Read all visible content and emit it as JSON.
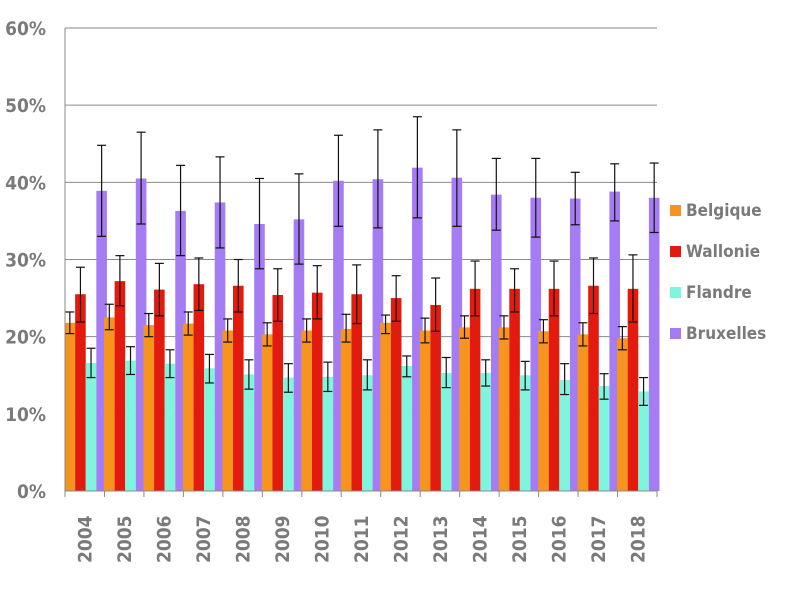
{
  "chart_data": {
    "type": "bar",
    "title": "",
    "xlabel": "",
    "ylabel": "",
    "categories": [
      "2004",
      "2005",
      "2006",
      "2007",
      "2008",
      "2009",
      "2010",
      "2011",
      "2012",
      "2013",
      "2014",
      "2015",
      "2016",
      "2017",
      "2018"
    ],
    "ylim": [
      0,
      60
    ],
    "yticks": [
      0,
      10,
      20,
      30,
      40,
      50,
      60
    ],
    "ytick_labels": [
      "0%",
      "10%",
      "20%",
      "30%",
      "40%",
      "50%",
      "60%"
    ],
    "grid": true,
    "legend_position": "right",
    "error_bars": true,
    "series": [
      {
        "name": "Belgique",
        "color": "#f7941d",
        "values": [
          21.8,
          22.5,
          21.5,
          21.7,
          20.8,
          20.3,
          20.8,
          21.0,
          21.8,
          20.8,
          21.2,
          21.2,
          20.7,
          20.3,
          19.8
        ],
        "error_low": [
          20.4,
          20.9,
          20.0,
          20.2,
          19.3,
          18.8,
          19.3,
          19.3,
          20.4,
          19.2,
          19.8,
          19.7,
          19.2,
          18.8,
          18.3
        ],
        "error_high": [
          23.2,
          24.2,
          23.0,
          23.2,
          22.3,
          21.8,
          22.3,
          22.9,
          22.8,
          22.4,
          22.7,
          22.7,
          22.2,
          21.8,
          21.3
        ]
      },
      {
        "name": "Wallonie",
        "color": "#e31b0e",
        "values": [
          25.5,
          27.2,
          26.1,
          26.8,
          26.6,
          25.4,
          25.7,
          25.5,
          25.0,
          24.1,
          26.2,
          26.2,
          26.2,
          26.6,
          26.2
        ],
        "error_low": [
          21.9,
          24.0,
          22.7,
          23.4,
          23.2,
          22.0,
          22.3,
          21.7,
          22.0,
          20.7,
          22.7,
          23.2,
          22.7,
          23.0,
          21.9
        ],
        "error_high": [
          29.0,
          30.5,
          29.5,
          30.2,
          30.0,
          28.8,
          29.2,
          29.3,
          27.9,
          27.6,
          29.8,
          28.8,
          29.8,
          30.2,
          30.6
        ]
      },
      {
        "name": "Flandre",
        "color": "#7ff5dd",
        "values": [
          16.6,
          16.9,
          16.5,
          15.9,
          15.1,
          14.7,
          14.8,
          15.0,
          16.2,
          15.3,
          15.3,
          15.0,
          14.4,
          13.6,
          12.9
        ],
        "error_low": [
          14.7,
          15.1,
          14.7,
          14.0,
          13.2,
          12.8,
          12.9,
          13.1,
          14.8,
          13.4,
          13.6,
          13.1,
          12.5,
          11.9,
          11.1
        ],
        "error_high": [
          18.5,
          18.7,
          18.3,
          17.7,
          17.0,
          16.5,
          16.7,
          17.0,
          17.5,
          17.3,
          17.0,
          16.8,
          16.5,
          15.2,
          14.7
        ]
      },
      {
        "name": "Bruxelles",
        "color": "#a57cf3",
        "values": [
          38.9,
          40.5,
          36.3,
          37.4,
          34.6,
          35.2,
          40.2,
          40.4,
          41.9,
          40.6,
          38.4,
          38.0,
          37.9,
          38.8,
          38.0
        ],
        "error_low": [
          33.0,
          34.6,
          30.5,
          31.5,
          28.8,
          29.4,
          34.3,
          34.1,
          35.4,
          34.3,
          33.8,
          32.9,
          34.5,
          35.0,
          33.5
        ],
        "error_high": [
          44.8,
          46.5,
          42.2,
          43.3,
          40.5,
          41.1,
          46.1,
          46.8,
          48.5,
          46.8,
          43.1,
          43.1,
          41.3,
          42.4,
          42.5
        ]
      }
    ]
  }
}
